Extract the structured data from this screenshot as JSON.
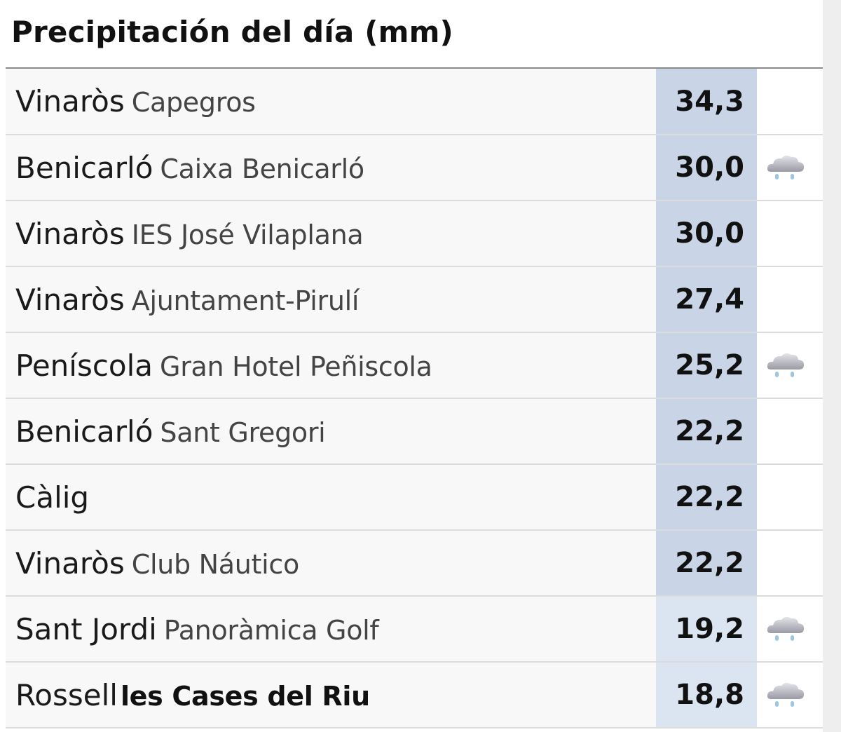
{
  "title": "Precipitación del día (mm)",
  "colors": {
    "stripe_dark": "#22a82a",
    "stripe_light": "#a6e57a",
    "value_bg_dark": "#c9d5e6",
    "value_bg_light": "#dbe4f1"
  },
  "rows": [
    {
      "town": "Vinaròs",
      "station": "Capegros",
      "station_bold": false,
      "value": "34,3",
      "icon": "",
      "stripe": "none",
      "value_shade": "dark"
    },
    {
      "town": "Benicarló",
      "station": "Caixa Benicarló",
      "station_bold": false,
      "value": "30,0",
      "icon": "rain-cloud-icon",
      "stripe": "dark",
      "value_shade": "dark"
    },
    {
      "town": "Vinaròs",
      "station": "IES José Vilaplana",
      "station_bold": false,
      "value": "30,0",
      "icon": "",
      "stripe": "dark",
      "value_shade": "dark"
    },
    {
      "town": "Vinaròs",
      "station": "Ajuntament-Pirulí",
      "station_bold": false,
      "value": "27,4",
      "icon": "",
      "stripe": "dark",
      "value_shade": "dark"
    },
    {
      "town": "Peníscola",
      "station": "Gran Hotel Peñiscola",
      "station_bold": false,
      "value": "25,2",
      "icon": "rain-cloud-icon",
      "stripe": "light",
      "value_shade": "dark"
    },
    {
      "town": "Benicarló",
      "station": "Sant Gregori",
      "station_bold": false,
      "value": "22,2",
      "icon": "",
      "stripe": "dark",
      "value_shade": "dark"
    },
    {
      "town": "Càlig",
      "station": "",
      "station_bold": false,
      "value": "22,2",
      "icon": "",
      "stripe": "light",
      "value_shade": "dark"
    },
    {
      "town": "Vinaròs",
      "station": "Club Náutico",
      "station_bold": false,
      "value": "22,2",
      "icon": "",
      "stripe": "dark",
      "value_shade": "dark"
    },
    {
      "town": "Sant Jordi",
      "station": "Panoràmica Golf",
      "station_bold": false,
      "value": "19,2",
      "icon": "rain-cloud-icon",
      "stripe": "dark",
      "value_shade": "light"
    },
    {
      "town": "Rossell",
      "station": "les Cases del Riu",
      "station_bold": true,
      "value": "18,8",
      "icon": "rain-cloud-icon",
      "stripe": "dark",
      "value_shade": "light"
    }
  ]
}
